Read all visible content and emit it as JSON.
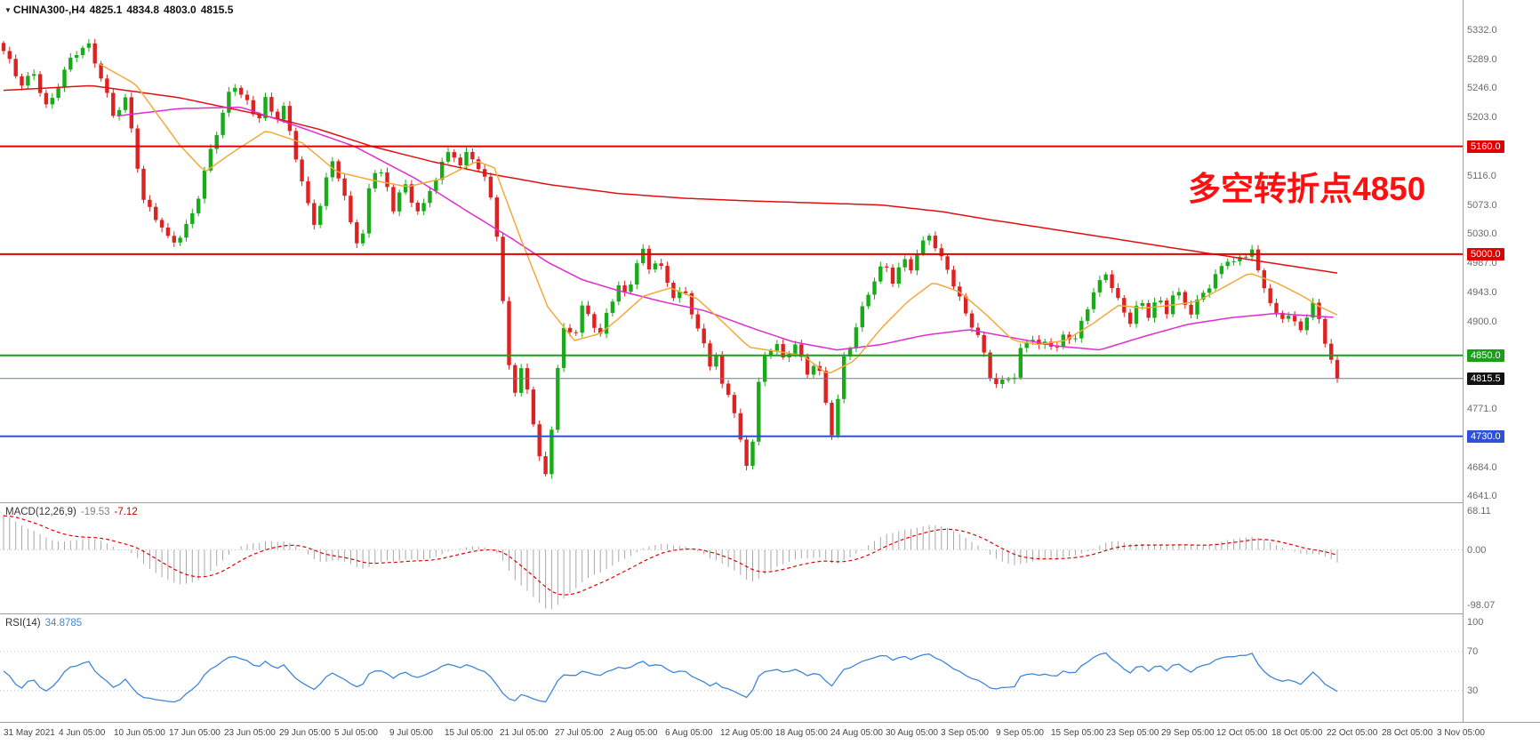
{
  "title_bar": {
    "expander_icon": "▼",
    "symbol": "CHINA300-,H4",
    "open": "4825.1",
    "high": "4834.8",
    "low": "4803.0",
    "close": "4815.5"
  },
  "chart_data": {
    "type": "candlestick",
    "title": "CHINA300- H4 candlestick chart with MACD and RSI",
    "symbol": "CHINA300-",
    "timeframe": "H4",
    "ohlc_display": {
      "open": 4825.1,
      "high": 4834.8,
      "low": 4803.0,
      "close": 4815.5
    },
    "annotation": {
      "text": "多空转折点4850",
      "color": "#ff0f0f"
    },
    "price_axis": {
      "max": 5377,
      "min": 4632,
      "ticks": [
        5332,
        5289,
        5246,
        5203,
        5116,
        5073,
        5030,
        4987,
        4943,
        4900,
        4771,
        4684,
        4641
      ]
    },
    "hlines": [
      {
        "price": 5160.0,
        "label": "5160.0",
        "color": "#e00000"
      },
      {
        "price": 5000.0,
        "label": "5000.0",
        "color": "#e00000"
      },
      {
        "price": 4850.0,
        "label": "4850.0",
        "color": "#18a018"
      },
      {
        "price": 4730.0,
        "label": "4730.0",
        "color": "#2d52d8"
      }
    ],
    "bid_line": {
      "price": 4815.5,
      "label": "4815.5",
      "line_color": "#6b7f93",
      "badge_bg": "#111111"
    },
    "candles": {
      "count": 220,
      "up_color": "#1aab1a",
      "down_color": "#dd2222",
      "close_anchors": [
        [
          0,
          5298
        ],
        [
          0.013,
          5252
        ],
        [
          0.023,
          5272
        ],
        [
          0.033,
          5212
        ],
        [
          0.043,
          5258
        ],
        [
          0.053,
          5298
        ],
        [
          0.063,
          5316
        ],
        [
          0.072,
          5270
        ],
        [
          0.082,
          5202
        ],
        [
          0.092,
          5230
        ],
        [
          0.099,
          5152
        ],
        [
          0.105,
          5082
        ],
        [
          0.115,
          5052
        ],
        [
          0.125,
          5012
        ],
        [
          0.135,
          5032
        ],
        [
          0.145,
          5082
        ],
        [
          0.155,
          5152
        ],
        [
          0.164,
          5202
        ],
        [
          0.172,
          5255
        ],
        [
          0.181,
          5232
        ],
        [
          0.191,
          5202
        ],
        [
          0.197,
          5230
        ],
        [
          0.204,
          5192
        ],
        [
          0.209,
          5222
        ],
        [
          0.22,
          5142
        ],
        [
          0.227,
          5082
        ],
        [
          0.234,
          5042
        ],
        [
          0.24,
          5092
        ],
        [
          0.247,
          5140
        ],
        [
          0.253,
          5102
        ],
        [
          0.26,
          5052
        ],
        [
          0.268,
          5006
        ],
        [
          0.273,
          5090
        ],
        [
          0.28,
          5132
        ],
        [
          0.286,
          5102
        ],
        [
          0.293,
          5062
        ],
        [
          0.299,
          5112
        ],
        [
          0.306,
          5082
        ],
        [
          0.313,
          5062
        ],
        [
          0.322,
          5102
        ],
        [
          0.329,
          5132
        ],
        [
          0.336,
          5158
        ],
        [
          0.342,
          5132
        ],
        [
          0.349,
          5158
        ],
        [
          0.355,
          5132
        ],
        [
          0.362,
          5102
        ],
        [
          0.367,
          5073
        ],
        [
          0.372,
          4992
        ],
        [
          0.376,
          4882
        ],
        [
          0.382,
          4792
        ],
        [
          0.388,
          4832
        ],
        [
          0.395,
          4782
        ],
        [
          0.401,
          4702
        ],
        [
          0.407,
          4662
        ],
        [
          0.411,
          4742
        ],
        [
          0.416,
          4842
        ],
        [
          0.421,
          4898
        ],
        [
          0.428,
          4882
        ],
        [
          0.434,
          4922
        ],
        [
          0.441,
          4902
        ],
        [
          0.447,
          4872
        ],
        [
          0.454,
          4922
        ],
        [
          0.461,
          4956
        ],
        [
          0.467,
          4940
        ],
        [
          0.474,
          4986
        ],
        [
          0.479,
          5004
        ],
        [
          0.484,
          4976
        ],
        [
          0.49,
          4990
        ],
        [
          0.497,
          4960
        ],
        [
          0.503,
          4940
        ],
        [
          0.51,
          4950
        ],
        [
          0.516,
          4916
        ],
        [
          0.523,
          4872
        ],
        [
          0.53,
          4832
        ],
        [
          0.534,
          4852
        ],
        [
          0.539,
          4802
        ],
        [
          0.546,
          4792
        ],
        [
          0.553,
          4718
        ],
        [
          0.558,
          4678
        ],
        [
          0.563,
          4742
        ],
        [
          0.567,
          4820
        ],
        [
          0.572,
          4850
        ],
        [
          0.579,
          4872
        ],
        [
          0.586,
          4838
        ],
        [
          0.592,
          4880
        ],
        [
          0.597,
          4850
        ],
        [
          0.602,
          4818
        ],
        [
          0.609,
          4840
        ],
        [
          0.615,
          4798
        ],
        [
          0.62,
          4728
        ],
        [
          0.625,
          4778
        ],
        [
          0.63,
          4848
        ],
        [
          0.635,
          4868
        ],
        [
          0.641,
          4900
        ],
        [
          0.648,
          4938
        ],
        [
          0.655,
          4968
        ],
        [
          0.661,
          4988
        ],
        [
          0.668,
          4958
        ],
        [
          0.674,
          4998
        ],
        [
          0.681,
          4978
        ],
        [
          0.688,
          5008
        ],
        [
          0.694,
          5030
        ],
        [
          0.701,
          4998
        ],
        [
          0.707,
          4988
        ],
        [
          0.714,
          4948
        ],
        [
          0.72,
          4918
        ],
        [
          0.727,
          4888
        ],
        [
          0.734,
          4858
        ],
        [
          0.74,
          4820
        ],
        [
          0.747,
          4800
        ],
        [
          0.751,
          4830
        ],
        [
          0.757,
          4810
        ],
        [
          0.763,
          4858
        ],
        [
          0.77,
          4878
        ],
        [
          0.776,
          4858
        ],
        [
          0.783,
          4878
        ],
        [
          0.789,
          4858
        ],
        [
          0.796,
          4888
        ],
        [
          0.803,
          4868
        ],
        [
          0.809,
          4898
        ],
        [
          0.816,
          4938
        ],
        [
          0.822,
          4958
        ],
        [
          0.828,
          4982
        ],
        [
          0.832,
          4948
        ],
        [
          0.839,
          4918
        ],
        [
          0.845,
          4898
        ],
        [
          0.852,
          4928
        ],
        [
          0.859,
          4908
        ],
        [
          0.865,
          4938
        ],
        [
          0.872,
          4918
        ],
        [
          0.878,
          4948
        ],
        [
          0.885,
          4928
        ],
        [
          0.891,
          4908
        ],
        [
          0.898,
          4938
        ],
        [
          0.905,
          4958
        ],
        [
          0.911,
          4978
        ],
        [
          0.918,
          4996
        ],
        [
          0.924,
          4984
        ],
        [
          0.931,
          4996
        ],
        [
          0.936,
          5006
        ],
        [
          0.941,
          4968
        ],
        [
          0.947,
          4948
        ],
        [
          0.953,
          4918
        ],
        [
          0.957,
          4898
        ],
        [
          0.962,
          4918
        ],
        [
          0.967,
          4898
        ],
        [
          0.972,
          4878
        ],
        [
          0.977,
          4908
        ],
        [
          0.982,
          4928
        ],
        [
          0.987,
          4898
        ],
        [
          0.992,
          4868
        ],
        [
          0.997,
          4838
        ],
        [
          1,
          4816
        ]
      ]
    },
    "moving_averages": [
      {
        "name": "slow",
        "color": "#e01010",
        "points": [
          [
            0,
            5243
          ],
          [
            0.066,
            5250
          ],
          [
            0.132,
            5232
          ],
          [
            0.197,
            5205
          ],
          [
            0.237,
            5185
          ],
          [
            0.276,
            5160
          ],
          [
            0.32,
            5138
          ],
          [
            0.362,
            5120
          ],
          [
            0.41,
            5103
          ],
          [
            0.461,
            5090
          ],
          [
            0.51,
            5083
          ],
          [
            0.559,
            5079
          ],
          [
            0.609,
            5076
          ],
          [
            0.658,
            5073
          ],
          [
            0.704,
            5063
          ],
          [
            0.737,
            5052
          ],
          [
            0.77,
            5042
          ],
          [
            0.803,
            5032
          ],
          [
            0.836,
            5022
          ],
          [
            0.868,
            5012
          ],
          [
            0.901,
            5002
          ],
          [
            0.934,
            4992
          ],
          [
            0.967,
            4982
          ],
          [
            1,
            4972
          ]
        ]
      },
      {
        "name": "medium",
        "color": "#e22bd0",
        "points": [
          [
            0.085,
            5205
          ],
          [
            0.132,
            5216
          ],
          [
            0.178,
            5218
          ],
          [
            0.217,
            5192
          ],
          [
            0.263,
            5160
          ],
          [
            0.309,
            5112
          ],
          [
            0.349,
            5062
          ],
          [
            0.382,
            5022
          ],
          [
            0.408,
            4988
          ],
          [
            0.434,
            4962
          ],
          [
            0.461,
            4946
          ],
          [
            0.493,
            4930
          ],
          [
            0.526,
            4916
          ],
          [
            0.559,
            4892
          ],
          [
            0.592,
            4870
          ],
          [
            0.625,
            4858
          ],
          [
            0.658,
            4866
          ],
          [
            0.691,
            4880
          ],
          [
            0.724,
            4888
          ],
          [
            0.757,
            4876
          ],
          [
            0.789,
            4864
          ],
          [
            0.822,
            4858
          ],
          [
            0.855,
            4878
          ],
          [
            0.888,
            4896
          ],
          [
            0.921,
            4906
          ],
          [
            0.954,
            4912
          ],
          [
            1,
            4906
          ]
        ]
      },
      {
        "name": "fast",
        "color": "#f2a93b",
        "points": [
          [
            0.072,
            5282
          ],
          [
            0.099,
            5252
          ],
          [
            0.132,
            5162
          ],
          [
            0.151,
            5122
          ],
          [
            0.171,
            5150
          ],
          [
            0.197,
            5183
          ],
          [
            0.224,
            5165
          ],
          [
            0.25,
            5122
          ],
          [
            0.276,
            5110
          ],
          [
            0.303,
            5100
          ],
          [
            0.329,
            5112
          ],
          [
            0.355,
            5138
          ],
          [
            0.368,
            5128
          ],
          [
            0.388,
            5022
          ],
          [
            0.408,
            4922
          ],
          [
            0.428,
            4872
          ],
          [
            0.447,
            4882
          ],
          [
            0.461,
            4904
          ],
          [
            0.48,
            4938
          ],
          [
            0.5,
            4950
          ],
          [
            0.52,
            4934
          ],
          [
            0.539,
            4900
          ],
          [
            0.559,
            4862
          ],
          [
            0.579,
            4856
          ],
          [
            0.599,
            4850
          ],
          [
            0.618,
            4822
          ],
          [
            0.638,
            4842
          ],
          [
            0.658,
            4890
          ],
          [
            0.678,
            4930
          ],
          [
            0.697,
            4958
          ],
          [
            0.717,
            4944
          ],
          [
            0.737,
            4910
          ],
          [
            0.757,
            4872
          ],
          [
            0.776,
            4866
          ],
          [
            0.796,
            4872
          ],
          [
            0.816,
            4896
          ],
          [
            0.836,
            4924
          ],
          [
            0.855,
            4920
          ],
          [
            0.875,
            4924
          ],
          [
            0.895,
            4930
          ],
          [
            0.914,
            4950
          ],
          [
            0.934,
            4972
          ],
          [
            0.954,
            4958
          ],
          [
            0.974,
            4938
          ],
          [
            0.987,
            4922
          ],
          [
            1,
            4910
          ]
        ]
      }
    ],
    "macd": {
      "label": "MACD(12,26,9)",
      "main_value": "-19.53",
      "signal_value": "-7.12",
      "axis_ticks": [
        "68.11",
        "0.00",
        "-98.07"
      ],
      "axis_values": [
        68.11,
        0,
        -98.07
      ],
      "vmax": 83,
      "vmin": -113,
      "hist_color": "#a8a8a8",
      "signal_color": "#e00000"
    },
    "rsi": {
      "label": "RSI(14)",
      "value": "34.8785",
      "axis_ticks": [
        "100",
        "70",
        "30"
      ],
      "axis_values": [
        100,
        70,
        30
      ],
      "levels": [
        70,
        30
      ],
      "vmax": 108,
      "vmin": -2,
      "line_color": "#3f86d8"
    },
    "x_labels": [
      "31 May 2021",
      "4 Jun 05:00",
      "10 Jun 05:00",
      "17 Jun 05:00",
      "23 Jun 05:00",
      "29 Jun 05:00",
      "5 Jul 05:00",
      "9 Jul 05:00",
      "15 Jul 05:00",
      "21 Jul 05:00",
      "27 Jul 05:00",
      "2 Aug 05:00",
      "6 Aug 05:00",
      "12 Aug 05:00",
      "18 Aug 05:00",
      "24 Aug 05:00",
      "30 Aug 05:00",
      "3 Sep 05:00",
      "9 Sep 05:00",
      "15 Sep 05:00",
      "23 Sep 05:00",
      "29 Sep 05:00",
      "12 Oct 05:00",
      "18 Oct 05:00",
      "22 Oct 05:00",
      "28 Oct 05:00",
      "3 Nov 05:00"
    ]
  }
}
